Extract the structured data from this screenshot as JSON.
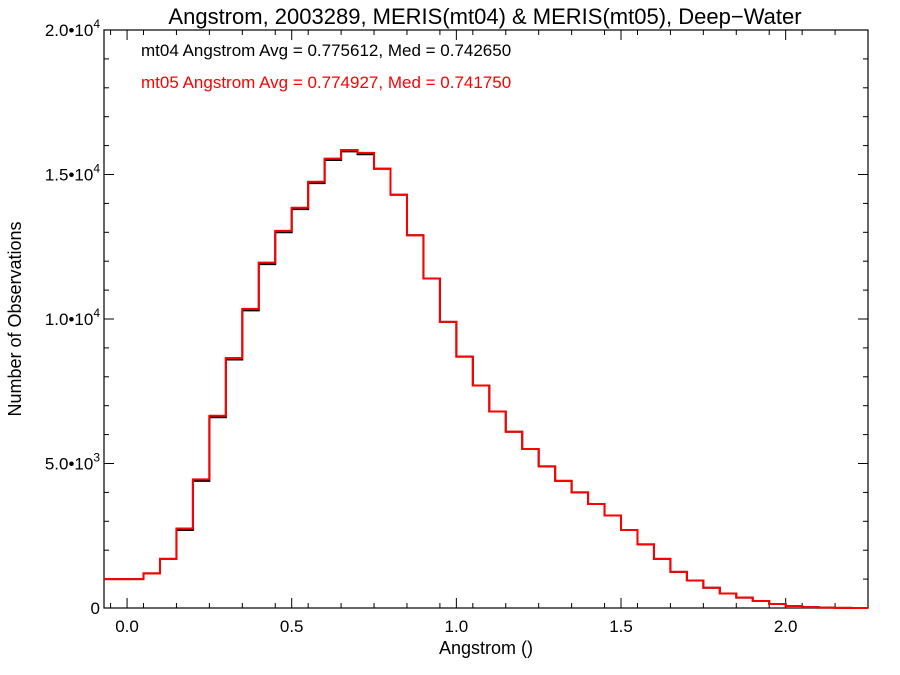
{
  "chart_data": {
    "type": "line",
    "title": "Angstrom, 2003289, MERIS(mt04) & MERIS(mt05), Deep−Water",
    "xlabel": "Angstrom ()",
    "ylabel": "Number of Observations",
    "xlim": [
      -0.07,
      2.25
    ],
    "ylim": [
      0,
      20000
    ],
    "x_ticks": [
      0.0,
      0.5,
      1.0,
      1.5,
      2.0
    ],
    "x_tick_labels": [
      "0.0",
      "0.5",
      "1.0",
      "1.5",
      "2.0"
    ],
    "y_ticks": [
      0,
      5000,
      10000,
      15000,
      20000
    ],
    "y_tick_labels": [
      {
        "mant": "0",
        "exp": ""
      },
      {
        "mant": "5.0•10",
        "exp": "3"
      },
      {
        "mant": "1.0•10",
        "exp": "4"
      },
      {
        "mant": "1.5•10",
        "exp": "4"
      },
      {
        "mant": "2.0•10",
        "exp": "4"
      }
    ],
    "annotations": [
      {
        "text": "mt04 Angstrom Avg = 0.775612, Med = 0.742650",
        "color": "#000000"
      },
      {
        "text": "mt05 Angstrom Avg = 0.774927, Med = 0.741750",
        "color": "#ff0000"
      }
    ],
    "series": [
      {
        "color": "#000000",
        "x": [
          -0.07,
          -0.05,
          0.0,
          0.05,
          0.1,
          0.15,
          0.2,
          0.25,
          0.3,
          0.35,
          0.4,
          0.45,
          0.5,
          0.55,
          0.6,
          0.65,
          0.7,
          0.75,
          0.8,
          0.85,
          0.9,
          0.95,
          1.0,
          1.05,
          1.1,
          1.15,
          1.2,
          1.25,
          1.3,
          1.35,
          1.4,
          1.45,
          1.5,
          1.55,
          1.6,
          1.65,
          1.7,
          1.75,
          1.8,
          1.85,
          1.9,
          1.95,
          2.0,
          2.05,
          2.1,
          2.15,
          2.2,
          2.25
        ],
        "y": [
          1000,
          1000,
          1000,
          1200,
          1700,
          2700,
          4400,
          6600,
          8600,
          10300,
          11900,
          13000,
          13800,
          14700,
          15500,
          15800,
          15700,
          15200,
          14300,
          12900,
          11400,
          9900,
          8700,
          7700,
          6800,
          6100,
          5500,
          4900,
          4400,
          4000,
          3600,
          3200,
          2700,
          2200,
          1700,
          1250,
          950,
          700,
          500,
          360,
          240,
          140,
          70,
          30,
          15,
          5,
          0,
          0
        ]
      },
      {
        "color": "#ff0000",
        "x": [
          -0.07,
          -0.05,
          0.0,
          0.05,
          0.1,
          0.15,
          0.2,
          0.25,
          0.3,
          0.35,
          0.4,
          0.45,
          0.5,
          0.55,
          0.6,
          0.65,
          0.7,
          0.75,
          0.8,
          0.85,
          0.9,
          0.95,
          1.0,
          1.05,
          1.1,
          1.15,
          1.2,
          1.25,
          1.3,
          1.35,
          1.4,
          1.45,
          1.5,
          1.55,
          1.6,
          1.65,
          1.7,
          1.75,
          1.8,
          1.85,
          1.9,
          1.95,
          2.0,
          2.05,
          2.1,
          2.15,
          2.2,
          2.25
        ],
        "y": [
          1000,
          1000,
          1000,
          1200,
          1700,
          2750,
          4450,
          6650,
          8650,
          10350,
          11950,
          13050,
          13850,
          14750,
          15550,
          15850,
          15750,
          15200,
          14300,
          12900,
          11400,
          9900,
          8700,
          7700,
          6800,
          6100,
          5500,
          4900,
          4400,
          4000,
          3600,
          3200,
          2700,
          2200,
          1700,
          1250,
          950,
          700,
          500,
          360,
          240,
          140,
          70,
          30,
          15,
          5,
          0,
          0
        ]
      }
    ]
  }
}
